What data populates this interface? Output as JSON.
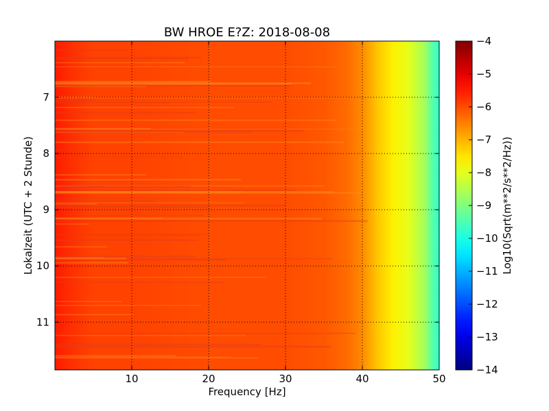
{
  "chart_data": {
    "type": "heatmap",
    "title": "BW HROE E?Z: 2018-08-08",
    "xlabel": "Frequency [Hz]",
    "ylabel": "Lokalzeit (UTC + 2 Stunde)",
    "xlim": [
      0,
      50
    ],
    "ylim": [
      6.0,
      11.85
    ],
    "y_inverted": true,
    "x_ticks": [
      10,
      20,
      30,
      40,
      50
    ],
    "x_tick_labels": [
      "10",
      "20",
      "30",
      "40",
      "50"
    ],
    "y_ticks": [
      7,
      8,
      9,
      10,
      11
    ],
    "y_tick_labels": [
      "7",
      "8",
      "9",
      "10",
      "11"
    ],
    "grid": true,
    "colorbar": {
      "label": "Log10(Sqrt(m**2/s**2/Hz))",
      "range": [
        -14,
        -4
      ],
      "ticks": [
        -4,
        -5,
        -6,
        -7,
        -8,
        -9,
        -10,
        -11,
        -12,
        -13,
        -14
      ],
      "tick_labels": [
        "−4",
        "−5",
        "−6",
        "−7",
        "−8",
        "−9",
        "−10",
        "−11",
        "−12",
        "−13",
        "−14"
      ],
      "colormap": "jet"
    },
    "spectral_profile": {
      "frequency_hz": [
        0,
        2,
        5,
        10,
        20,
        30,
        35,
        38,
        40,
        42,
        44,
        46,
        48,
        49,
        50
      ],
      "log10_amplitude": [
        -5.5,
        -5.7,
        -5.9,
        -5.9,
        -6.0,
        -6.0,
        -6.1,
        -6.3,
        -6.6,
        -7.2,
        -7.6,
        -8.0,
        -8.6,
        -9.3,
        -9.8
      ]
    }
  }
}
